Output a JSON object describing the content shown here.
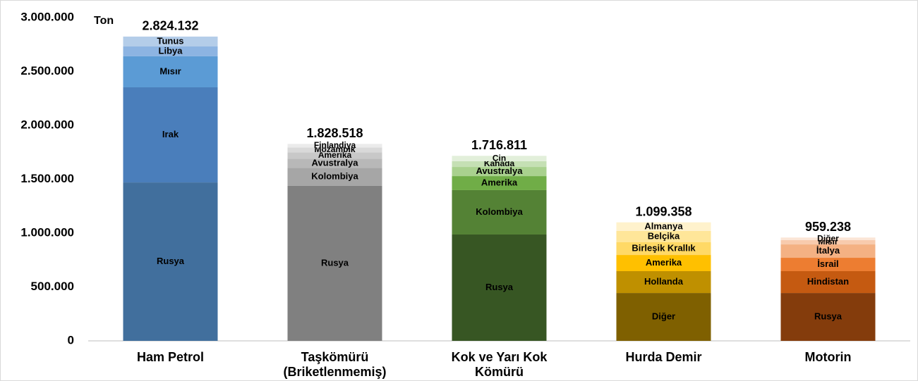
{
  "chart_data": {
    "type": "stacked_bar",
    "y_label": "Ton",
    "ylim": [
      0,
      3000000
    ],
    "yticks": [
      0,
      {
        "value": 500000,
        "label": "500.000"
      },
      {
        "value": 1000000,
        "label": "1.000.000"
      },
      {
        "value": 1500000,
        "label": "1.500.000"
      },
      {
        "value": 2000000,
        "label": "2.000.000"
      },
      {
        "value": 2500000,
        "label": "2.500.000"
      },
      {
        "value": 3000000,
        "label": "3.000.000"
      }
    ],
    "categories": [
      [
        "Ham Petrol"
      ],
      [
        "Taşkömürü",
        "(Briketlenmemiş)"
      ],
      [
        "Kok ve Yarı Kok",
        "Kömürü"
      ],
      [
        "Hurda Demir"
      ],
      [
        "Motorin"
      ]
    ],
    "bars": [
      {
        "total": 2824132,
        "total_label": "2.824.132",
        "segments": [
          {
            "name": "Rusya",
            "color": "#416f9d",
            "value": 1470000
          },
          {
            "name": "Irak",
            "color": "#4a7ebb",
            "value": 883000
          },
          {
            "name": "Mısır",
            "color": "#5b9bd5",
            "value": 288000
          },
          {
            "name": "Libya",
            "color": "#8db4e2",
            "value": 91000
          },
          {
            "name": "Tunus",
            "color": "#b4cde9",
            "value": 92000
          }
        ]
      },
      {
        "total": 1828518,
        "total_label": "1.828.518",
        "segments": [
          {
            "name": "Rusya",
            "color": "#808080",
            "value": 1440000
          },
          {
            "name": "Kolombiya",
            "color": "#a6a6a6",
            "value": 165000
          },
          {
            "name": "Avustralya",
            "color": "#b8b8b8",
            "value": 85000
          },
          {
            "name": "Amerika",
            "color": "#c8c8c8",
            "value": 60000
          },
          {
            "name": "Mozambik",
            "color": "#d9d9d9",
            "value": 45000
          },
          {
            "name": "Finlandiya",
            "color": "#ebebeb",
            "value": 33000
          }
        ]
      },
      {
        "total": 1716811,
        "total_label": "1.716.811",
        "segments": [
          {
            "name": "Rusya",
            "color": "#375623",
            "value": 987000
          },
          {
            "name": "Kolombiya",
            "color": "#548235",
            "value": 412000
          },
          {
            "name": "Amerika",
            "color": "#70ad47",
            "value": 130000
          },
          {
            "name": "Avustralya",
            "color": "#a9d18e",
            "value": 85000
          },
          {
            "name": "Kanada",
            "color": "#c5e0b4",
            "value": 53000
          },
          {
            "name": "Çin",
            "color": "#e2efda",
            "value": 50000
          }
        ]
      },
      {
        "total": 1099358,
        "total_label": "1.099.358",
        "segments": [
          {
            "name": "Diğer",
            "color": "#7f6000",
            "value": 444000
          },
          {
            "name": "Hollanda",
            "color": "#bf9000",
            "value": 203000
          },
          {
            "name": "Amerika",
            "color": "#ffc000",
            "value": 150000
          },
          {
            "name": "Birleşik Krallık",
            "color": "#ffd966",
            "value": 118000
          },
          {
            "name": "Belçika",
            "color": "#ffe699",
            "value": 105000
          },
          {
            "name": "Almanya",
            "color": "#fff2cc",
            "value": 80000
          }
        ]
      },
      {
        "total": 959238,
        "total_label": "959.238",
        "segments": [
          {
            "name": "Rusya",
            "color": "#843c0c",
            "value": 444000
          },
          {
            "name": "Hindistan",
            "color": "#c55a11",
            "value": 203000
          },
          {
            "name": "İsrail",
            "color": "#ed7d31",
            "value": 124000
          },
          {
            "name": "İtalya",
            "color": "#f4b183",
            "value": 124000
          },
          {
            "name": "Mısır",
            "color": "#f8cbad",
            "value": 40000
          },
          {
            "name": "Diğer",
            "color": "#fbe5d6",
            "value": 24000
          }
        ]
      }
    ]
  }
}
